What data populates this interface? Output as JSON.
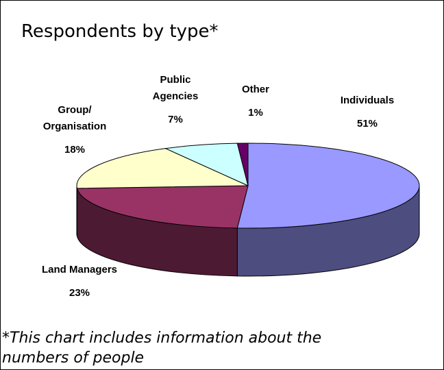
{
  "chart_data": {
    "type": "pie",
    "title": "Respondents by type*",
    "categories": [
      "Individuals",
      "Land Managers",
      "Group/ Organisation",
      "Public Agencies",
      "Other"
    ],
    "values": [
      51,
      23,
      18,
      7,
      1
    ],
    "value_labels": [
      "51%",
      "23%",
      "18%",
      "7%",
      "1%"
    ],
    "colors": [
      "#9999ff",
      "#993366",
      "#ffffcc",
      "#ccffff",
      "#660066"
    ],
    "footnote": "*This chart includes information about the numbers of people"
  }
}
